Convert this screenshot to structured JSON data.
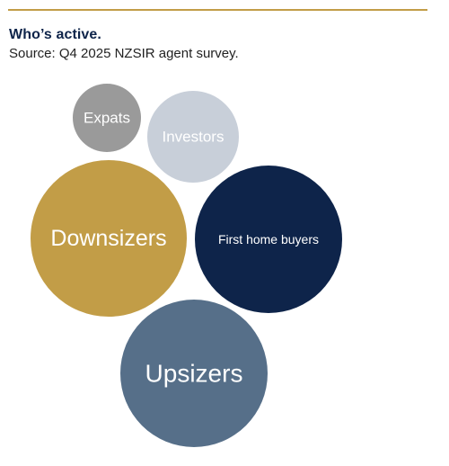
{
  "header": {
    "title": "Who’s active.",
    "subtitle": "Source: Q4 2025 NZSIR agent survey."
  },
  "colors": {
    "rule": "#c29d47",
    "title": "#0e244a"
  },
  "chart_data": {
    "type": "bubble",
    "title": "Who’s active.",
    "subtitle": "Source: Q4 2025 NZSIR agent survey.",
    "legend": "none",
    "grid": false,
    "series": [
      {
        "name": "Expats",
        "color": "#9a9a9a"
      },
      {
        "name": "Investors",
        "color": "#c8cfd9"
      },
      {
        "name": "Downsizers",
        "color": "#c29d47"
      },
      {
        "name": "First home buyers",
        "color": "#0e244a"
      },
      {
        "name": "Upsizers",
        "color": "#566f89"
      }
    ]
  }
}
